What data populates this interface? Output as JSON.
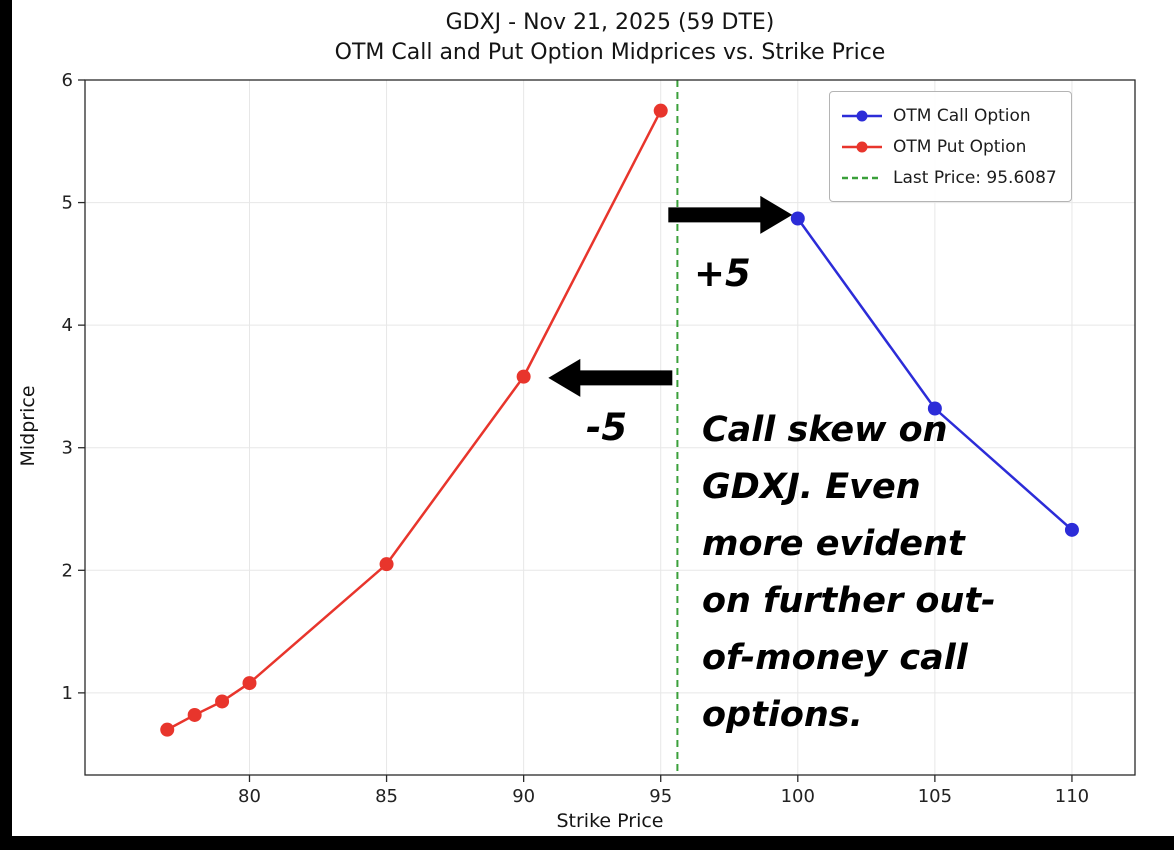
{
  "page": {
    "background": "#ffffff",
    "frame_color": "#000000"
  },
  "chart_data": {
    "type": "line",
    "title_lines": [
      "GDXJ - Nov 21, 2025 (59 DTE)",
      "OTM Call and Put Option Midprices vs. Strike Price"
    ],
    "xlabel": "Strike Price",
    "ylabel": "Midprice",
    "xlim": [
      74,
      112.3
    ],
    "ylim": [
      0.33,
      6.0
    ],
    "xticks": [
      "80",
      "85",
      "90",
      "95",
      "100",
      "105",
      "110"
    ],
    "yticks": [
      "1",
      "2",
      "3",
      "4",
      "5",
      "6"
    ],
    "grid": true,
    "grid_color": "#e7e7e7",
    "spine_color": "#2a2a2a",
    "legend_position": "upper right",
    "series": [
      {
        "name": "OTM Call Option",
        "color": "#2c2cd8",
        "marker": "circle",
        "line": "solid",
        "x": [
          100,
          105,
          110
        ],
        "y": [
          4.87,
          3.32,
          2.33
        ]
      },
      {
        "name": "OTM Put Option",
        "color": "#e8352c",
        "marker": "circle",
        "line": "solid",
        "x": [
          77,
          78,
          79,
          80,
          85,
          90,
          95
        ],
        "y": [
          0.7,
          0.82,
          0.93,
          1.08,
          2.05,
          3.58,
          5.75
        ]
      }
    ],
    "reference_line": {
      "label": "Last Price: 95.6087",
      "x": 95.6087,
      "color": "#3aa03a",
      "style": "dashed"
    },
    "arrows": [
      {
        "direction": "right",
        "label": "+5",
        "tip": {
          "x": 99.8,
          "y": 4.9
        }
      },
      {
        "direction": "left",
        "label": "-5",
        "tip": {
          "x": 90.9,
          "y": 3.57
        }
      }
    ],
    "annotations": {
      "note_lines": [
        "Call skew on",
        "GDXJ. Even",
        "more evident",
        "on further out-",
        "of-money call",
        "options."
      ]
    }
  }
}
